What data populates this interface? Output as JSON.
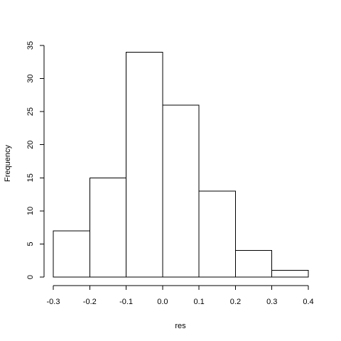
{
  "chart_data": {
    "type": "bar",
    "subtype": "histogram",
    "bins": [
      {
        "from": -0.3,
        "to": -0.2,
        "count": 7
      },
      {
        "from": -0.2,
        "to": -0.1,
        "count": 15
      },
      {
        "from": -0.1,
        "to": 0.0,
        "count": 34
      },
      {
        "from": 0.0,
        "to": 0.1,
        "count": 26
      },
      {
        "from": 0.1,
        "to": 0.2,
        "count": 13
      },
      {
        "from": 0.2,
        "to": 0.3,
        "count": 4
      },
      {
        "from": 0.3,
        "to": 0.4,
        "count": 1
      }
    ],
    "xlabel": "res",
    "ylabel": "Frequency",
    "xlim": [
      -0.3,
      0.4
    ],
    "ylim": [
      0,
      35
    ],
    "xticks": [
      "-0.3",
      "-0.2",
      "-0.1",
      "0.0",
      "0.1",
      "0.2",
      "0.3",
      "0.4"
    ],
    "yticks": [
      "0",
      "5",
      "10",
      "15",
      "20",
      "25",
      "30",
      "35"
    ],
    "grid": false,
    "bar_fill": "#ffffff",
    "bar_stroke": "#000000"
  }
}
